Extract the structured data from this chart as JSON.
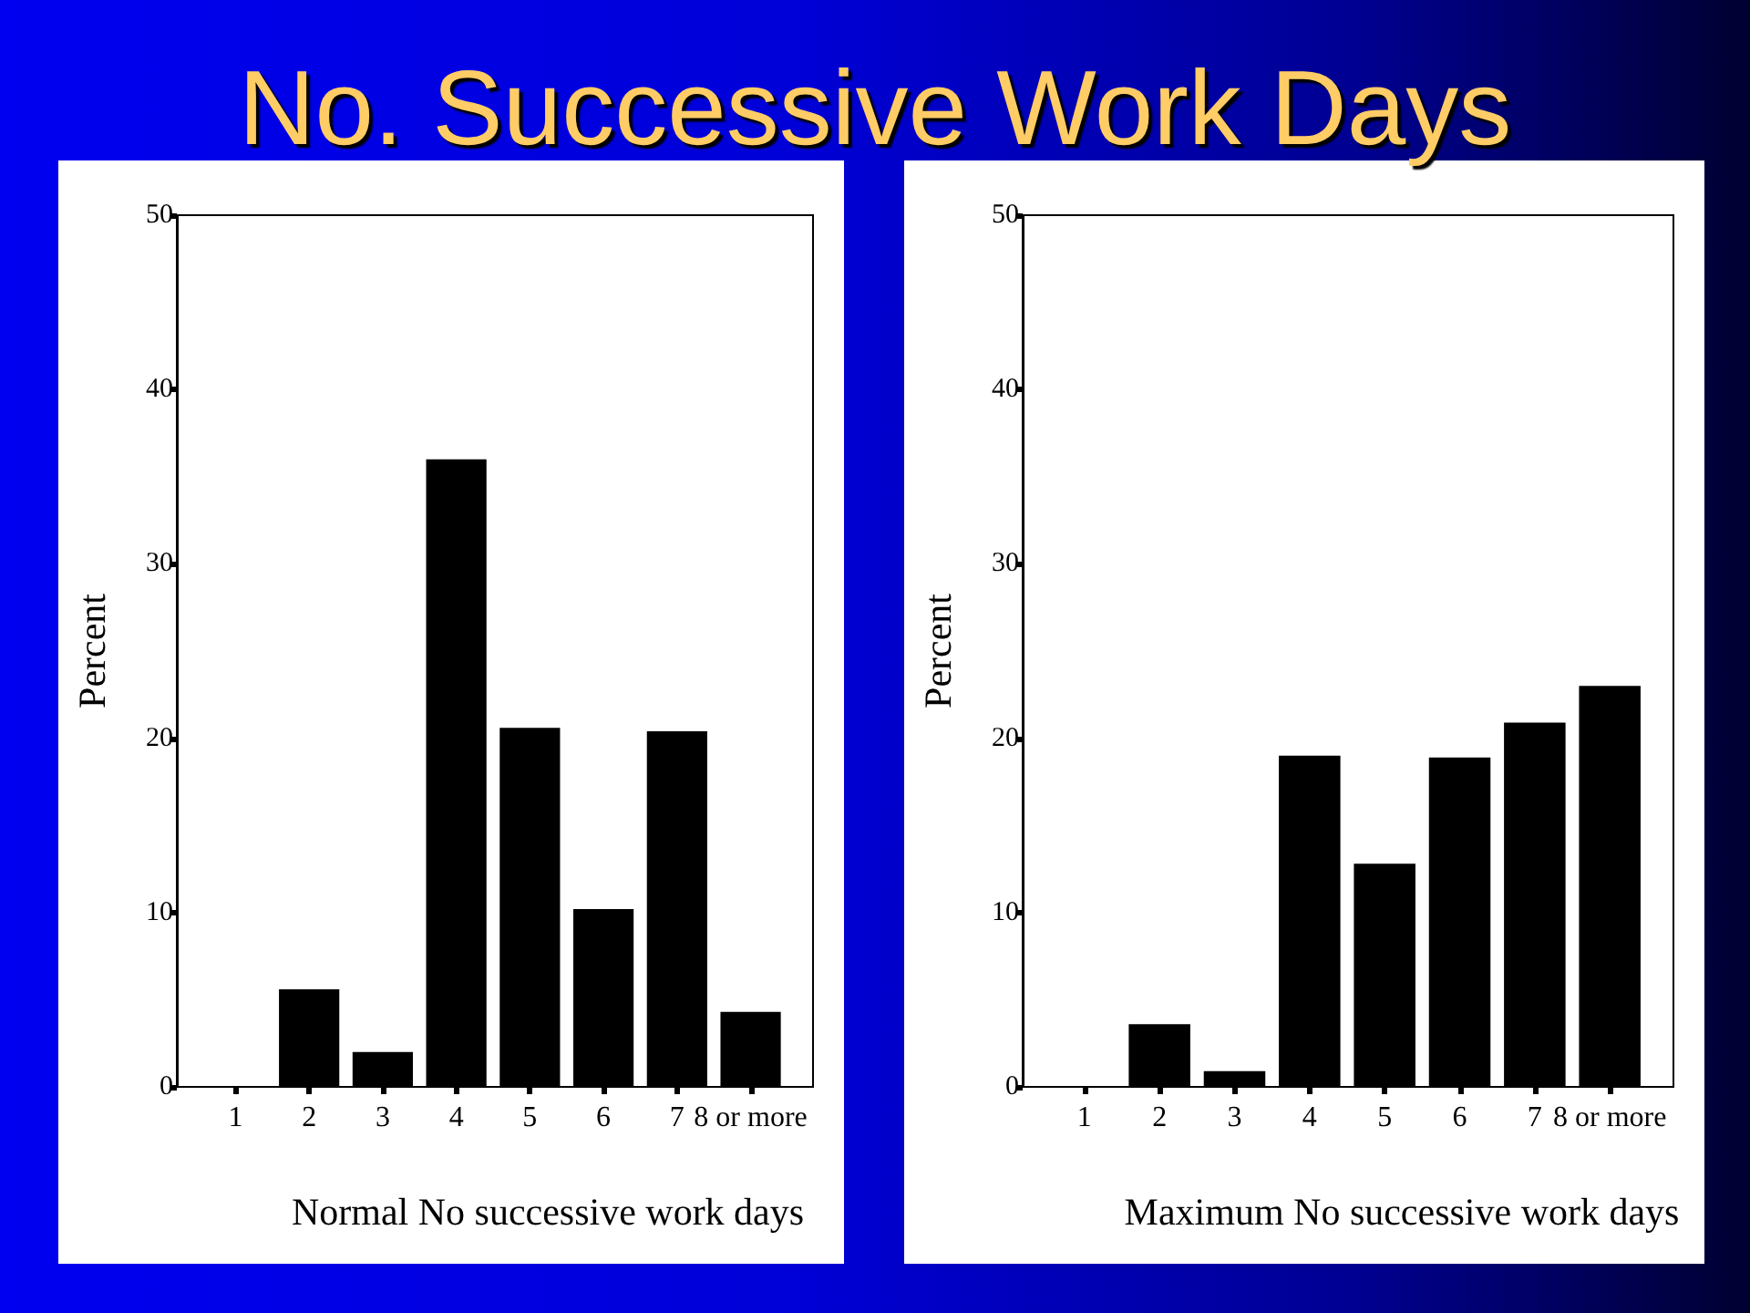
{
  "chart_data": [
    {
      "type": "bar",
      "title": "No. Successive Work Days",
      "xlabel": "Normal No successive work days",
      "ylabel": "Percent",
      "categories": [
        "1",
        "2",
        "3",
        "4",
        "5",
        "6",
        "7",
        "8 or more"
      ],
      "values": [
        0,
        5.6,
        2.0,
        36,
        20.6,
        10.2,
        20.4,
        4.3
      ],
      "color": "#000000",
      "ylim": [
        0,
        50
      ],
      "yticks": [
        0,
        10,
        20,
        30,
        40,
        50
      ]
    },
    {
      "type": "bar",
      "xlabel": "Maximum No successive work days",
      "ylabel": "Percent",
      "categories": [
        "1",
        "2",
        "3",
        "4",
        "5",
        "6",
        "7",
        "8 or more"
      ],
      "values": [
        0,
        3.6,
        0.9,
        19.0,
        12.8,
        18.9,
        20.9,
        23.0
      ],
      "color": "#000000",
      "ylim": [
        0,
        50
      ],
      "yticks": [
        0,
        10,
        20,
        30,
        40,
        50
      ]
    }
  ]
}
